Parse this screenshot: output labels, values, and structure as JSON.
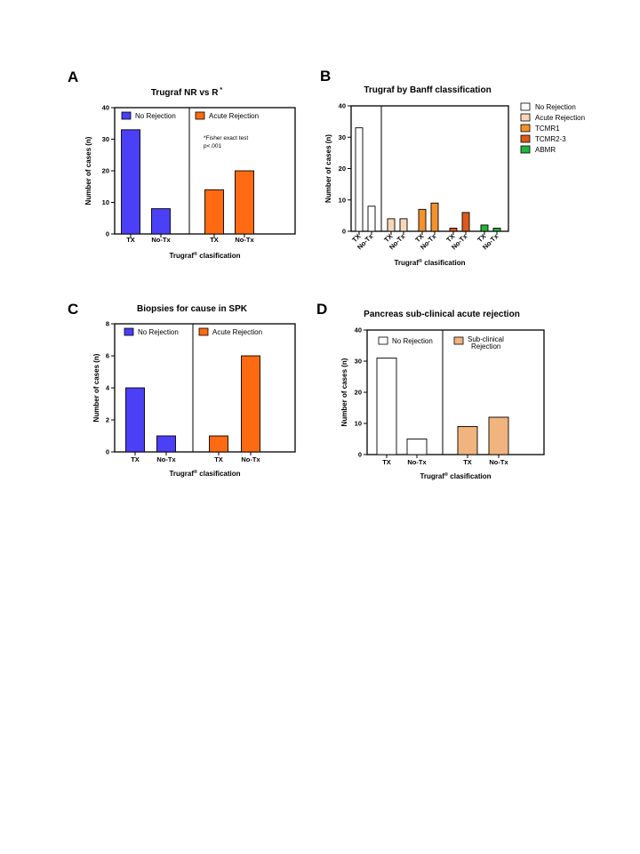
{
  "figure": {
    "panels": [
      {
        "id": "A",
        "label": "A",
        "title": "Trugraf NR vs R",
        "title_mark": "*",
        "ylabel": "Number of cases (n)",
        "xlabel_pre": "Trugraf",
        "xlabel_sup": "®",
        "xlabel_post": " clasification",
        "note_lines": [
          "*Fisher exact test",
          "p<.001"
        ],
        "legend": [
          {
            "label": "No Rejection",
            "color": "#4b40f5"
          },
          {
            "label": "Acute Rejection",
            "color": "#ff6a13"
          }
        ]
      },
      {
        "id": "B",
        "label": "B",
        "title": "Trugraf by Banff classification",
        "ylabel": "Number of cases (n)",
        "xlabel_pre": "Trugraf",
        "xlabel_sup": "®",
        "xlabel_post": " clasification",
        "legend": [
          {
            "label": "No Rejection",
            "color": "#ffffff"
          },
          {
            "label": "Acute Rejection",
            "color": "#f8d7b8"
          },
          {
            "label": "TCMR1",
            "color": "#f5922e"
          },
          {
            "label": "TCMR2-3",
            "color": "#dc5a1c"
          },
          {
            "label": "ABMR",
            "color": "#22b33a"
          }
        ]
      },
      {
        "id": "C",
        "label": "C",
        "title": "Biopsies for cause in SPK",
        "ylabel": "Number of cases (n)",
        "xlabel_pre": "Trugraf",
        "xlabel_sup": "®",
        "xlabel_post": " clasification",
        "legend": [
          {
            "label": "No Rejection",
            "color": "#4b40f5"
          },
          {
            "label": "Acute Rejection",
            "color": "#ff6a13"
          }
        ]
      },
      {
        "id": "D",
        "label": "D",
        "title": "Pancreas sub-clinical acute rejection",
        "ylabel": "Number of cases (n)",
        "xlabel_pre": "Trugraf",
        "xlabel_sup": "®",
        "xlabel_post": " clasification",
        "legend": [
          {
            "label": "No Rejection",
            "color": "#ffffff"
          },
          {
            "label": "Sub-clinical Rejection",
            "color": "#f2b47e"
          }
        ]
      }
    ]
  },
  "chart_data": [
    {
      "panel": "A",
      "type": "bar",
      "title": "Trugraf NR vs R *",
      "xlabel": "Trugraf® clasification",
      "ylabel": "Number of cases (n)",
      "ylim": [
        0,
        40
      ],
      "yticks": [
        0,
        10,
        20,
        30,
        40
      ],
      "groups": [
        {
          "name": "No Rejection",
          "color": "#4b40f5",
          "categories": [
            "TX",
            "No-Tx"
          ],
          "values": [
            33,
            8
          ]
        },
        {
          "name": "Acute Rejection",
          "color": "#ff6a13",
          "categories": [
            "TX",
            "No-Tx"
          ],
          "values": [
            14,
            20
          ]
        }
      ],
      "annotation": "*Fisher exact test p<.001",
      "grid": false,
      "legend_position": "top"
    },
    {
      "panel": "B",
      "type": "bar",
      "title": "Trugraf by Banff classification",
      "xlabel": "Trugraf® clasification",
      "ylabel": "Number of cases (n)",
      "ylim": [
        0,
        40
      ],
      "yticks": [
        0,
        10,
        20,
        30,
        40
      ],
      "groups": [
        {
          "name": "No Rejection",
          "color": "#ffffff",
          "categories": [
            "TX",
            "No-Tx"
          ],
          "values": [
            33,
            8
          ]
        },
        {
          "name": "Acute Rejection",
          "color": "#f8d7b8",
          "categories": [
            "TX",
            "No-Tx"
          ],
          "values": [
            4,
            4
          ]
        },
        {
          "name": "TCMR1",
          "color": "#f5922e",
          "categories": [
            "TX",
            "No-Tx"
          ],
          "values": [
            7,
            9
          ]
        },
        {
          "name": "TCMR2-3",
          "color": "#dc5a1c",
          "categories": [
            "TX",
            "No-Tx"
          ],
          "values": [
            1,
            6
          ]
        },
        {
          "name": "ABMR",
          "color": "#22b33a",
          "categories": [
            "TX",
            "No-Tx"
          ],
          "values": [
            2,
            1
          ]
        }
      ],
      "grid": false,
      "legend_position": "right"
    },
    {
      "panel": "C",
      "type": "bar",
      "title": "Biopsies for cause in SPK",
      "xlabel": "Trugraf® clasification",
      "ylabel": "Number of cases (n)",
      "ylim": [
        0,
        8
      ],
      "yticks": [
        0,
        2,
        4,
        6,
        8
      ],
      "groups": [
        {
          "name": "No Rejection",
          "color": "#4b40f5",
          "categories": [
            "TX",
            "No-Tx"
          ],
          "values": [
            4,
            1
          ]
        },
        {
          "name": "Acute Rejection",
          "color": "#ff6a13",
          "categories": [
            "TX",
            "No-Tx"
          ],
          "values": [
            1,
            6
          ]
        }
      ],
      "grid": false,
      "legend_position": "top"
    },
    {
      "panel": "D",
      "type": "bar",
      "title": "Pancreas sub-clinical acute rejection",
      "xlabel": "Trugraf® clasification",
      "ylabel": "Number of cases (n)",
      "ylim": [
        0,
        40
      ],
      "yticks": [
        0,
        10,
        20,
        30,
        40
      ],
      "groups": [
        {
          "name": "No Rejection",
          "color": "#ffffff",
          "categories": [
            "TX",
            "No-Tx"
          ],
          "values": [
            31,
            5
          ]
        },
        {
          "name": "Sub-clinical Rejection",
          "color": "#f2b47e",
          "categories": [
            "TX",
            "No-Tx"
          ],
          "values": [
            9,
            12
          ]
        }
      ],
      "grid": false,
      "legend_position": "top"
    }
  ]
}
